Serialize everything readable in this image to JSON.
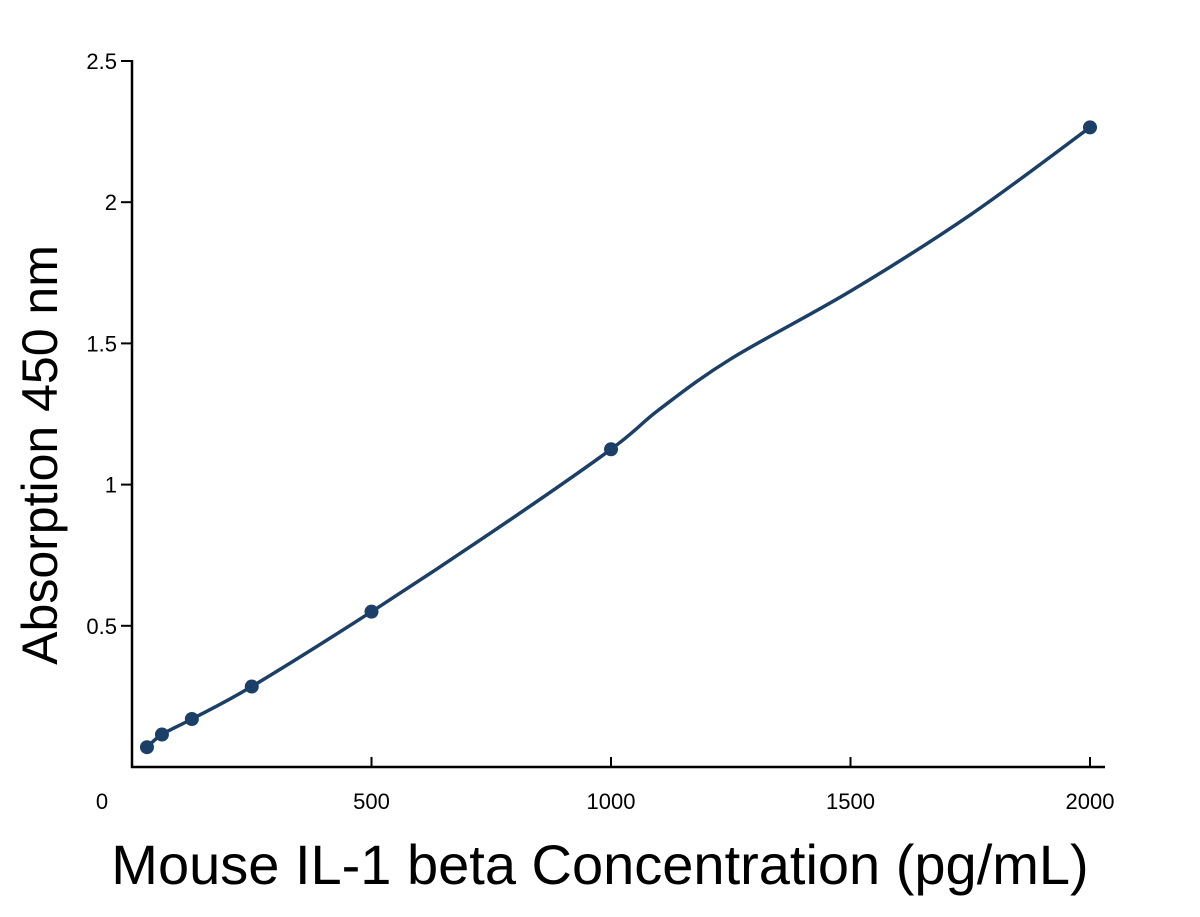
{
  "chart_data": {
    "type": "line",
    "title": "",
    "xlabel": "Mouse IL-1 beta Concentration (pg/mL)",
    "ylabel": "Absorption 450 nm",
    "xlim": [
      0,
      2000
    ],
    "ylim": [
      0,
      2.5
    ],
    "x_ticks": [
      {
        "value": 0,
        "label": "0"
      },
      {
        "value": 500,
        "label": "500"
      },
      {
        "value": 1000,
        "label": "1000"
      },
      {
        "value": 1500,
        "label": "1500"
      },
      {
        "value": 2000,
        "label": "2000"
      }
    ],
    "y_ticks": [
      {
        "value": 0.5,
        "label": "0.5"
      },
      {
        "value": 1,
        "label": "1"
      },
      {
        "value": 1.5,
        "label": "1.5"
      },
      {
        "value": 2,
        "label": "2"
      },
      {
        "value": 2.5,
        "label": "2.5"
      }
    ],
    "grid": false,
    "legend": "none",
    "series": [
      {
        "color": "#1b3f66",
        "points": [
          {
            "x": 31.25,
            "y": 0.07
          },
          {
            "x": 62.5,
            "y": 0.115
          },
          {
            "x": 125,
            "y": 0.17
          },
          {
            "x": 250,
            "y": 0.285
          },
          {
            "x": 500,
            "y": 0.55
          },
          {
            "x": 1000,
            "y": 1.125
          },
          {
            "x": 2000,
            "y": 2.265
          }
        ],
        "curve": [
          {
            "x": 31.25,
            "y": 0.07
          },
          {
            "x": 62.5,
            "y": 0.115
          },
          {
            "x": 125,
            "y": 0.17
          },
          {
            "x": 250,
            "y": 0.285
          },
          {
            "x": 500,
            "y": 0.55
          },
          {
            "x": 750,
            "y": 0.83
          },
          {
            "x": 1000,
            "y": 1.125
          },
          {
            "x": 1100,
            "y": 1.265
          },
          {
            "x": 1250,
            "y": 1.445
          },
          {
            "x": 1500,
            "y": 1.685
          },
          {
            "x": 1750,
            "y": 1.955
          },
          {
            "x": 2000,
            "y": 2.265
          }
        ]
      }
    ]
  }
}
